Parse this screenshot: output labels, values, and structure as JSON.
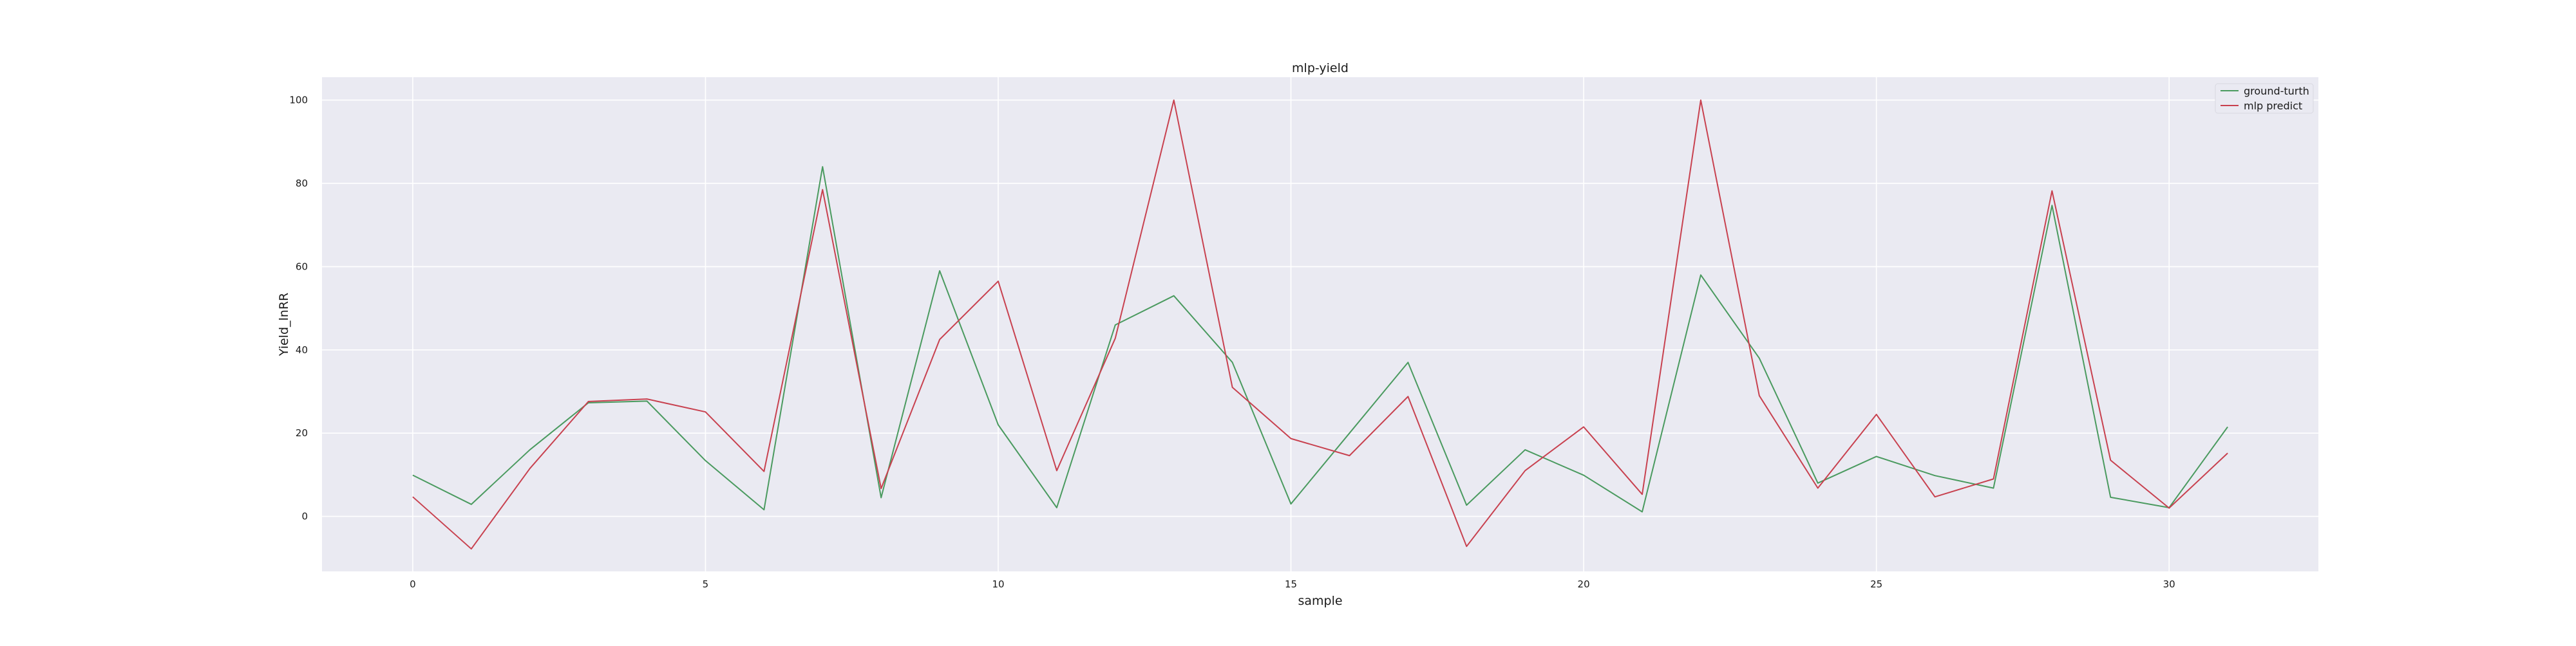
{
  "chart_data": {
    "type": "line",
    "title": "mlp-yield",
    "xlabel": "sample",
    "ylabel": "Yield_lnRR",
    "x": [
      0,
      1,
      2,
      3,
      4,
      5,
      6,
      7,
      8,
      9,
      10,
      11,
      12,
      13,
      14,
      15,
      16,
      17,
      18,
      19,
      20,
      21,
      22,
      23,
      24,
      25,
      26,
      27,
      28,
      29,
      30,
      31
    ],
    "series": [
      {
        "name": "ground-turth",
        "color": "#4a9a5f",
        "values": [
          9.9,
          2.9,
          16.0,
          27.3,
          27.7,
          13.4,
          1.6,
          84.0,
          4.5,
          59.0,
          22.0,
          2.1,
          46.0,
          53.0,
          37.0,
          3.0,
          20.0,
          37.0,
          2.7,
          16.0,
          9.9,
          1.1,
          58.0,
          38.0,
          8.0,
          14.4,
          9.8,
          6.8,
          74.7,
          4.6,
          2.1,
          21.5
        ]
      },
      {
        "name": "mlp predict",
        "color": "#c8414f",
        "values": [
          4.7,
          -7.8,
          11.5,
          27.6,
          28.2,
          25.1,
          10.8,
          78.5,
          6.7,
          42.5,
          56.5,
          11.0,
          42.8,
          100.0,
          31.0,
          18.7,
          14.6,
          28.8,
          -7.2,
          11.0,
          21.5,
          5.3,
          100.0,
          29.0,
          6.8,
          24.5,
          4.7,
          9.0,
          78.2,
          13.5,
          2.0,
          15.2
        ]
      }
    ],
    "xlim": [
      -1.55,
      32.55
    ],
    "ylim": [
      -13.2,
      105.5
    ],
    "xticks": [
      0,
      5,
      10,
      15,
      20,
      25,
      30
    ],
    "yticks": [
      0,
      20,
      40,
      60,
      80,
      100
    ],
    "grid": true,
    "legend_position": "top-right",
    "plot_background": "#eaeaf2"
  }
}
